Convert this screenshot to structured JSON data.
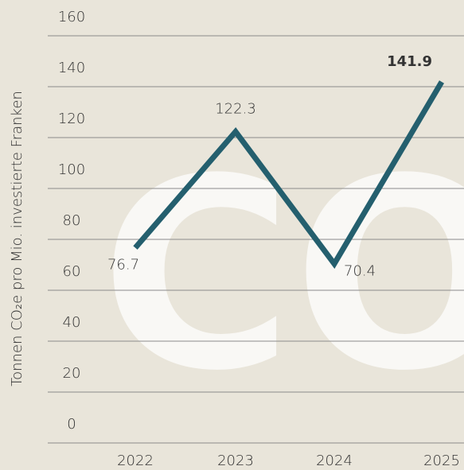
{
  "chart_data": {
    "type": "line",
    "watermark": "CO",
    "y_label": "Tonnen CO₂e pro Mio. investierte Franken",
    "categories": [
      "2022",
      "2023",
      "2024",
      "2025"
    ],
    "series": [
      {
        "name": null,
        "color": "#245f6e",
        "values": [
          76.7,
          122.3,
          70.4,
          141.9
        ]
      }
    ],
    "ylim": [
      0,
      160
    ],
    "yticks": [
      0,
      20,
      40,
      60,
      80,
      100,
      120,
      140,
      160
    ],
    "grid": true
  }
}
